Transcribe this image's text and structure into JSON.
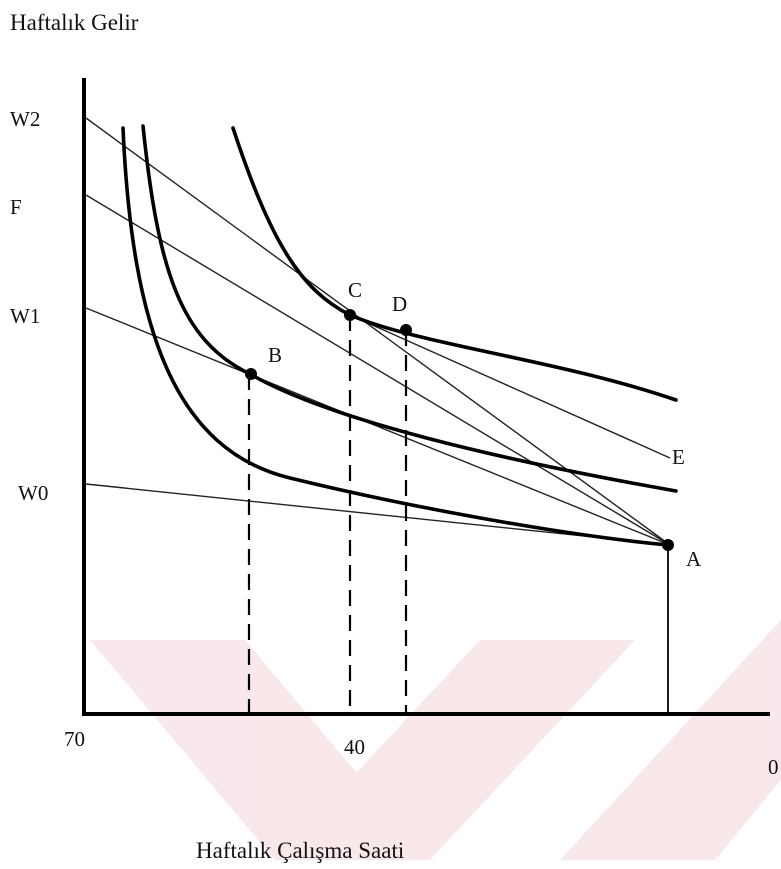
{
  "labels": {
    "y_title": "Haftalık Gelir",
    "x_title": "Haftalık Çalışma Saati",
    "w2": "W2",
    "f": "F",
    "w1": "W1",
    "w0": "W0",
    "x_left": "70",
    "x_mid": "40",
    "x_right": "0",
    "pt_a": "A",
    "pt_b": "B",
    "pt_c": "C",
    "pt_d": "D",
    "pt_e": "E"
  },
  "colors": {
    "watermark": "#f4d6da",
    "ink": "#000000"
  }
}
